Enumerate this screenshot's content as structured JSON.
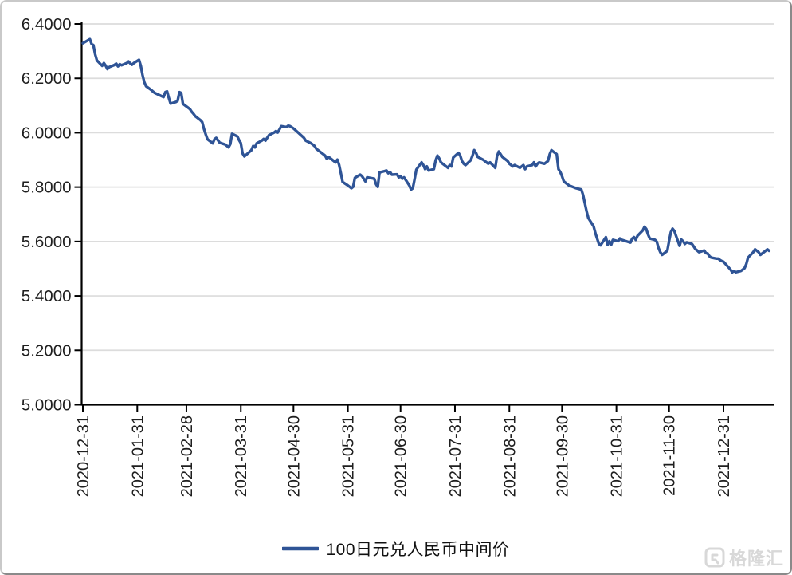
{
  "chart_data": {
    "type": "line",
    "title": "",
    "xlabel": "",
    "ylabel": "",
    "grid": true,
    "legend_position": "bottom",
    "ylim": [
      5.0,
      6.4
    ],
    "y_ticks": [
      "6.4000",
      "6.2000",
      "6.0000",
      "5.8000",
      "5.6000",
      "5.4000",
      "5.2000",
      "5.0000"
    ],
    "x_ticks": [
      "2020-12-31",
      "2021-01-31",
      "2021-02-28",
      "2021-03-31",
      "2021-04-30",
      "2021-05-31",
      "2021-06-30",
      "2021-07-31",
      "2021-08-31",
      "2021-09-30",
      "2021-10-31",
      "2021-11-30",
      "2021-12-31"
    ],
    "colors": {
      "series": "#2f5496",
      "grid": "#dcdcdc",
      "axis": "#000000",
      "tick_label": "#1f1f1f"
    },
    "series": [
      {
        "name": "100日元兑人民币中间价",
        "color": "#2f5496",
        "points": [
          [
            "2020-12-31",
            6.329
          ],
          [
            "2021-01-04",
            6.344
          ],
          [
            "2021-01-05",
            6.326
          ],
          [
            "2021-01-06",
            6.322
          ],
          [
            "2021-01-07",
            6.289
          ],
          [
            "2021-01-08",
            6.266
          ],
          [
            "2021-01-11",
            6.246
          ],
          [
            "2021-01-12",
            6.256
          ],
          [
            "2021-01-13",
            6.247
          ],
          [
            "2021-01-14",
            6.234
          ],
          [
            "2021-01-15",
            6.241
          ],
          [
            "2021-01-18",
            6.249
          ],
          [
            "2021-01-19",
            6.254
          ],
          [
            "2021-01-20",
            6.244
          ],
          [
            "2021-01-21",
            6.252
          ],
          [
            "2021-01-22",
            6.248
          ],
          [
            "2021-01-25",
            6.256
          ],
          [
            "2021-01-26",
            6.262
          ],
          [
            "2021-01-27",
            6.255
          ],
          [
            "2021-01-28",
            6.25
          ],
          [
            "2021-01-29",
            6.256
          ],
          [
            "2021-02-01",
            6.268
          ],
          [
            "2021-02-02",
            6.246
          ],
          [
            "2021-02-03",
            6.212
          ],
          [
            "2021-02-04",
            6.186
          ],
          [
            "2021-02-05",
            6.171
          ],
          [
            "2021-02-08",
            6.157
          ],
          [
            "2021-02-09",
            6.151
          ],
          [
            "2021-02-10",
            6.146
          ],
          [
            "2021-02-15",
            6.131
          ],
          [
            "2021-02-16",
            6.149
          ],
          [
            "2021-02-17",
            6.152
          ],
          [
            "2021-02-18",
            6.128
          ],
          [
            "2021-02-19",
            6.107
          ],
          [
            "2021-02-22",
            6.113
          ],
          [
            "2021-02-23",
            6.117
          ],
          [
            "2021-02-24",
            6.149
          ],
          [
            "2021-02-25",
            6.146
          ],
          [
            "2021-02-26",
            6.106
          ],
          [
            "2021-03-01",
            6.092
          ],
          [
            "2021-03-02",
            6.087
          ],
          [
            "2021-03-03",
            6.077
          ],
          [
            "2021-03-04",
            6.07
          ],
          [
            "2021-03-05",
            6.061
          ],
          [
            "2021-03-08",
            6.046
          ],
          [
            "2021-03-09",
            6.039
          ],
          [
            "2021-03-10",
            6.014
          ],
          [
            "2021-03-11",
            5.994
          ],
          [
            "2021-03-12",
            5.976
          ],
          [
            "2021-03-15",
            5.961
          ],
          [
            "2021-03-16",
            5.976
          ],
          [
            "2021-03-17",
            5.981
          ],
          [
            "2021-03-18",
            5.972
          ],
          [
            "2021-03-19",
            5.963
          ],
          [
            "2021-03-22",
            5.957
          ],
          [
            "2021-03-23",
            5.952
          ],
          [
            "2021-03-24",
            5.946
          ],
          [
            "2021-03-25",
            5.958
          ],
          [
            "2021-03-26",
            5.996
          ],
          [
            "2021-03-29",
            5.987
          ],
          [
            "2021-03-30",
            5.973
          ],
          [
            "2021-03-31",
            5.962
          ],
          [
            "2021-04-01",
            5.924
          ],
          [
            "2021-04-02",
            5.913
          ],
          [
            "2021-04-06",
            5.936
          ],
          [
            "2021-04-07",
            5.951
          ],
          [
            "2021-04-08",
            5.946
          ],
          [
            "2021-04-09",
            5.961
          ],
          [
            "2021-04-12",
            5.971
          ],
          [
            "2021-04-13",
            5.977
          ],
          [
            "2021-04-14",
            5.971
          ],
          [
            "2021-04-15",
            5.981
          ],
          [
            "2021-04-16",
            5.991
          ],
          [
            "2021-04-19",
            6.001
          ],
          [
            "2021-04-20",
            6.006
          ],
          [
            "2021-04-21",
            6.001
          ],
          [
            "2021-04-22",
            6.012
          ],
          [
            "2021-04-23",
            6.024
          ],
          [
            "2021-04-26",
            6.021
          ],
          [
            "2021-04-27",
            6.026
          ],
          [
            "2021-04-28",
            6.024
          ],
          [
            "2021-04-29",
            6.02
          ],
          [
            "2021-04-30",
            6.016
          ],
          [
            "2021-05-06",
            5.981
          ],
          [
            "2021-05-07",
            5.971
          ],
          [
            "2021-05-10",
            5.961
          ],
          [
            "2021-05-11",
            5.956
          ],
          [
            "2021-05-12",
            5.951
          ],
          [
            "2021-05-13",
            5.941
          ],
          [
            "2021-05-14",
            5.936
          ],
          [
            "2021-05-17",
            5.921
          ],
          [
            "2021-05-18",
            5.916
          ],
          [
            "2021-05-19",
            5.904
          ],
          [
            "2021-05-20",
            5.911
          ],
          [
            "2021-05-21",
            5.906
          ],
          [
            "2021-05-24",
            5.891
          ],
          [
            "2021-05-25",
            5.901
          ],
          [
            "2021-05-26",
            5.882
          ],
          [
            "2021-05-27",
            5.851
          ],
          [
            "2021-05-28",
            5.819
          ],
          [
            "2021-05-31",
            5.806
          ],
          [
            "2021-06-01",
            5.801
          ],
          [
            "2021-06-02",
            5.796
          ],
          [
            "2021-06-03",
            5.801
          ],
          [
            "2021-06-04",
            5.834
          ],
          [
            "2021-06-07",
            5.846
          ],
          [
            "2021-06-08",
            5.841
          ],
          [
            "2021-06-09",
            5.831
          ],
          [
            "2021-06-10",
            5.821
          ],
          [
            "2021-06-11",
            5.836
          ],
          [
            "2021-06-15",
            5.831
          ],
          [
            "2021-06-16",
            5.811
          ],
          [
            "2021-06-17",
            5.801
          ],
          [
            "2021-06-18",
            5.854
          ],
          [
            "2021-06-21",
            5.859
          ],
          [
            "2021-06-22",
            5.861
          ],
          [
            "2021-06-23",
            5.851
          ],
          [
            "2021-06-24",
            5.856
          ],
          [
            "2021-06-25",
            5.846
          ],
          [
            "2021-06-28",
            5.847
          ],
          [
            "2021-06-29",
            5.836
          ],
          [
            "2021-06-30",
            5.841
          ],
          [
            "2021-07-01",
            5.831
          ],
          [
            "2021-07-02",
            5.836
          ],
          [
            "2021-07-05",
            5.806
          ],
          [
            "2021-07-06",
            5.791
          ],
          [
            "2021-07-07",
            5.796
          ],
          [
            "2021-07-08",
            5.829
          ],
          [
            "2021-07-09",
            5.864
          ],
          [
            "2021-07-12",
            5.891
          ],
          [
            "2021-07-13",
            5.881
          ],
          [
            "2021-07-14",
            5.866
          ],
          [
            "2021-07-15",
            5.876
          ],
          [
            "2021-07-16",
            5.861
          ],
          [
            "2021-07-19",
            5.866
          ],
          [
            "2021-07-20",
            5.899
          ],
          [
            "2021-07-21",
            5.916
          ],
          [
            "2021-07-22",
            5.906
          ],
          [
            "2021-07-23",
            5.891
          ],
          [
            "2021-07-26",
            5.876
          ],
          [
            "2021-07-27",
            5.871
          ],
          [
            "2021-07-28",
            5.881
          ],
          [
            "2021-07-29",
            5.876
          ],
          [
            "2021-07-30",
            5.909
          ],
          [
            "2021-08-02",
            5.926
          ],
          [
            "2021-08-03",
            5.916
          ],
          [
            "2021-08-04",
            5.896
          ],
          [
            "2021-08-05",
            5.886
          ],
          [
            "2021-08-06",
            5.881
          ],
          [
            "2021-08-09",
            5.899
          ],
          [
            "2021-08-10",
            5.916
          ],
          [
            "2021-08-11",
            5.936
          ],
          [
            "2021-08-12",
            5.926
          ],
          [
            "2021-08-13",
            5.911
          ],
          [
            "2021-08-16",
            5.901
          ],
          [
            "2021-08-17",
            5.896
          ],
          [
            "2021-08-18",
            5.891
          ],
          [
            "2021-08-19",
            5.886
          ],
          [
            "2021-08-20",
            5.891
          ],
          [
            "2021-08-23",
            5.871
          ],
          [
            "2021-08-24",
            5.914
          ],
          [
            "2021-08-25",
            5.931
          ],
          [
            "2021-08-26",
            5.921
          ],
          [
            "2021-08-27",
            5.911
          ],
          [
            "2021-08-30",
            5.896
          ],
          [
            "2021-08-31",
            5.886
          ],
          [
            "2021-09-01",
            5.881
          ],
          [
            "2021-09-02",
            5.876
          ],
          [
            "2021-09-03",
            5.881
          ],
          [
            "2021-09-06",
            5.871
          ],
          [
            "2021-09-07",
            5.876
          ],
          [
            "2021-09-08",
            5.881
          ],
          [
            "2021-09-09",
            5.866
          ],
          [
            "2021-09-10",
            5.876
          ],
          [
            "2021-09-13",
            5.881
          ],
          [
            "2021-09-14",
            5.891
          ],
          [
            "2021-09-15",
            5.876
          ],
          [
            "2021-09-16",
            5.886
          ],
          [
            "2021-09-17",
            5.891
          ],
          [
            "2021-09-20",
            5.886
          ],
          [
            "2021-09-22",
            5.896
          ],
          [
            "2021-09-23",
            5.921
          ],
          [
            "2021-09-24",
            5.936
          ],
          [
            "2021-09-27",
            5.921
          ],
          [
            "2021-09-28",
            5.866
          ],
          [
            "2021-09-29",
            5.856
          ],
          [
            "2021-09-30",
            5.841
          ],
          [
            "2021-10-01",
            5.821
          ],
          [
            "2021-10-04",
            5.806
          ],
          [
            "2021-10-06",
            5.801
          ],
          [
            "2021-10-08",
            5.796
          ],
          [
            "2021-10-11",
            5.791
          ],
          [
            "2021-10-12",
            5.771
          ],
          [
            "2021-10-13",
            5.741
          ],
          [
            "2021-10-14",
            5.711
          ],
          [
            "2021-10-15",
            5.686
          ],
          [
            "2021-10-18",
            5.656
          ],
          [
            "2021-10-19",
            5.631
          ],
          [
            "2021-10-20",
            5.611
          ],
          [
            "2021-10-21",
            5.591
          ],
          [
            "2021-10-22",
            5.586
          ],
          [
            "2021-10-25",
            5.616
          ],
          [
            "2021-10-26",
            5.588
          ],
          [
            "2021-10-27",
            5.601
          ],
          [
            "2021-10-28",
            5.588
          ],
          [
            "2021-10-29",
            5.606
          ],
          [
            "2021-11-01",
            5.601
          ],
          [
            "2021-11-02",
            5.611
          ],
          [
            "2021-11-03",
            5.606
          ],
          [
            "2021-11-08",
            5.596
          ],
          [
            "2021-11-09",
            5.611
          ],
          [
            "2021-11-10",
            5.616
          ],
          [
            "2021-11-11",
            5.606
          ],
          [
            "2021-11-12",
            5.621
          ],
          [
            "2021-11-15",
            5.641
          ],
          [
            "2021-11-16",
            5.654
          ],
          [
            "2021-11-17",
            5.646
          ],
          [
            "2021-11-18",
            5.626
          ],
          [
            "2021-11-19",
            5.611
          ],
          [
            "2021-11-22",
            5.606
          ],
          [
            "2021-11-23",
            5.599
          ],
          [
            "2021-11-24",
            5.576
          ],
          [
            "2021-11-25",
            5.561
          ],
          [
            "2021-11-26",
            5.551
          ],
          [
            "2021-11-29",
            5.566
          ],
          [
            "2021-11-30",
            5.601
          ],
          [
            "2021-12-01",
            5.634
          ],
          [
            "2021-12-02",
            5.647
          ],
          [
            "2021-12-03",
            5.639
          ],
          [
            "2021-12-06",
            5.584
          ],
          [
            "2021-12-07",
            5.607
          ],
          [
            "2021-12-08",
            5.601
          ],
          [
            "2021-12-09",
            5.591
          ],
          [
            "2021-12-10",
            5.597
          ],
          [
            "2021-12-13",
            5.591
          ],
          [
            "2021-12-14",
            5.582
          ],
          [
            "2021-12-15",
            5.572
          ],
          [
            "2021-12-16",
            5.567
          ],
          [
            "2021-12-17",
            5.561
          ],
          [
            "2021-12-20",
            5.567
          ],
          [
            "2021-12-21",
            5.557
          ],
          [
            "2021-12-22",
            5.556
          ],
          [
            "2021-12-23",
            5.546
          ],
          [
            "2021-12-24",
            5.541
          ],
          [
            "2021-12-27",
            5.537
          ],
          [
            "2021-12-28",
            5.537
          ],
          [
            "2021-12-29",
            5.532
          ],
          [
            "2021-12-30",
            5.528
          ],
          [
            "2021-12-31",
            5.526
          ],
          [
            "2022-01-04",
            5.497
          ],
          [
            "2022-01-05",
            5.487
          ],
          [
            "2022-01-06",
            5.492
          ],
          [
            "2022-01-07",
            5.487
          ],
          [
            "2022-01-10",
            5.492
          ],
          [
            "2022-01-11",
            5.497
          ],
          [
            "2022-01-12",
            5.502
          ],
          [
            "2022-01-13",
            5.517
          ],
          [
            "2022-01-14",
            5.541
          ],
          [
            "2022-01-17",
            5.561
          ],
          [
            "2022-01-18",
            5.571
          ],
          [
            "2022-01-19",
            5.566
          ],
          [
            "2022-01-20",
            5.561
          ],
          [
            "2022-01-21",
            5.551
          ],
          [
            "2022-01-24",
            5.566
          ],
          [
            "2022-01-25",
            5.571
          ],
          [
            "2022-01-26",
            5.566
          ]
        ]
      }
    ]
  },
  "legend": {
    "label": "100日元兑人民币中间价",
    "line_color": "#2f5496"
  },
  "watermark": {
    "text": "格隆汇"
  }
}
